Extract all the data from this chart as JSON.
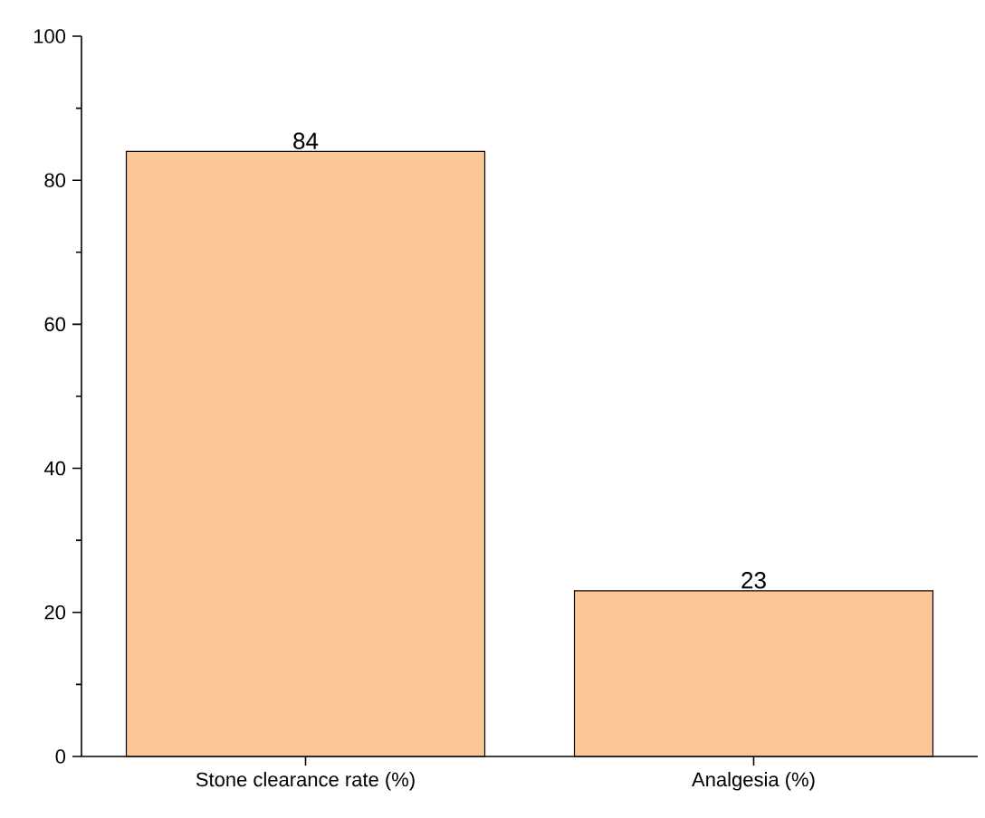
{
  "chart_data": {
    "type": "bar",
    "categories": [
      "Stone clearance rate (%)",
      "Analgesia (%)"
    ],
    "values": [
      84,
      23
    ],
    "color": "#fbc796",
    "ylim": [
      0,
      100
    ],
    "yticks": [
      0,
      20,
      40,
      60,
      80,
      100
    ],
    "data_labels": true,
    "grid": false
  }
}
